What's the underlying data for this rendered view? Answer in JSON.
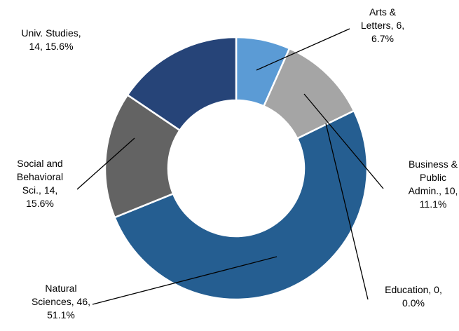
{
  "chart_data": {
    "type": "pie",
    "variant": "donut",
    "categories": [
      "Arts & Letters",
      "Business & Public Admin.",
      "Education",
      "Natural Sciences",
      "Social and Behavioral Sci.",
      "Univ. Studies"
    ],
    "values": [
      6,
      10,
      0,
      46,
      14,
      14
    ],
    "percentages": [
      "6.7%",
      "11.1%",
      "0.0%",
      "51.1%",
      "15.6%",
      "15.6%"
    ],
    "colors": [
      "#5b9bd5",
      "#a5a5a5",
      "#264478",
      "#255e91",
      "#636363",
      "#264478"
    ],
    "legend": "none",
    "data_labels": [
      [
        "Arts &",
        "Letters, 6,",
        "6.7%"
      ],
      [
        "Business &",
        "Public",
        "Admin., 10,",
        "11.1%"
      ],
      [
        "Education, 0,",
        "0.0%"
      ],
      [
        "Natural",
        "Sciences, 46,",
        "51.1%"
      ],
      [
        "Social and",
        "Behavioral",
        "Sci., 14,",
        "15.6%"
      ],
      [
        "Univ. Studies,",
        "14, 15.6%"
      ]
    ]
  }
}
